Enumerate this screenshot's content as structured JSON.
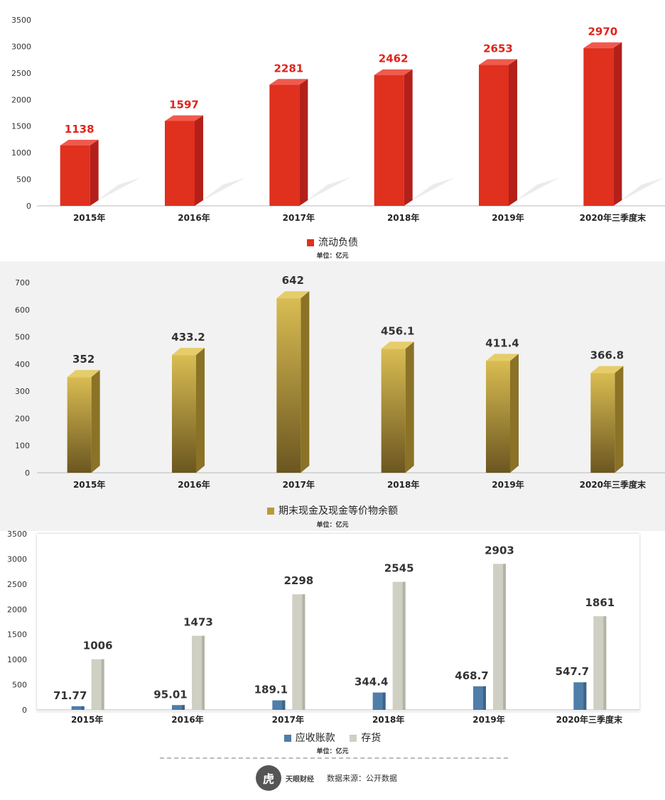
{
  "colors": {
    "red": "#e0301e",
    "red_side": "#b3201a",
    "gold_top": "#d9bc52",
    "gold_bottom": "#6b5620",
    "gold_side": "#8a7226",
    "blue": "#4f7ea8",
    "gray": "#cfcfc3"
  },
  "chart_data": [
    {
      "type": "bar",
      "categories": [
        "2015年",
        "2016年",
        "2017年",
        "2018年",
        "2019年",
        "2020年三季度末"
      ],
      "series": [
        {
          "name": "流动负债",
          "values": [
            1138,
            1597,
            2281,
            2462,
            2653,
            2970
          ],
          "labels": [
            "1138",
            "1597",
            "2281",
            "2462",
            "2653",
            "2970"
          ]
        }
      ],
      "yticks": [
        "0",
        "500",
        "1000",
        "1500",
        "2000",
        "2500",
        "3000",
        "3500"
      ],
      "ylim": [
        0,
        3500
      ],
      "unit": "单位：亿元"
    },
    {
      "type": "bar",
      "categories": [
        "2015年",
        "2016年",
        "2017年",
        "2018年",
        "2019年",
        "2020年三季度末"
      ],
      "series": [
        {
          "name": "期末现金及现金等价物余额",
          "values": [
            352,
            433.2,
            642,
            456.1,
            411.4,
            366.8
          ],
          "labels": [
            "352",
            "433.2",
            "642",
            "456.1",
            "411.4",
            "366.8"
          ]
        }
      ],
      "yticks": [
        "0",
        "100",
        "200",
        "300",
        "400",
        "500",
        "600",
        "700"
      ],
      "ylim": [
        0,
        700
      ],
      "unit": "单位：亿元"
    },
    {
      "type": "bar",
      "categories": [
        "2015年",
        "2016年",
        "2017年",
        "2018年",
        "2019年",
        "2020年三季度末"
      ],
      "series": [
        {
          "name": "应收账款",
          "values": [
            71.77,
            95.01,
            189.1,
            344.4,
            468.7,
            547.7
          ],
          "labels": [
            "71.77",
            "95.01",
            "189.1",
            "344.4",
            "468.7",
            "547.7"
          ]
        },
        {
          "name": "存货",
          "values": [
            1006,
            1473,
            2298,
            2545,
            2903,
            1861
          ],
          "labels": [
            "1006",
            "1473",
            "2298",
            "2545",
            "2903",
            "1861"
          ]
        }
      ],
      "yticks": [
        "0",
        "500",
        "1000",
        "1500",
        "2000",
        "2500",
        "3000",
        "3500"
      ],
      "ylim": [
        0,
        3500
      ],
      "unit": "单位：亿元"
    }
  ],
  "footer": {
    "logo_text": "虎",
    "brand": "天眼财经",
    "source": "数据来源：公开数据"
  }
}
